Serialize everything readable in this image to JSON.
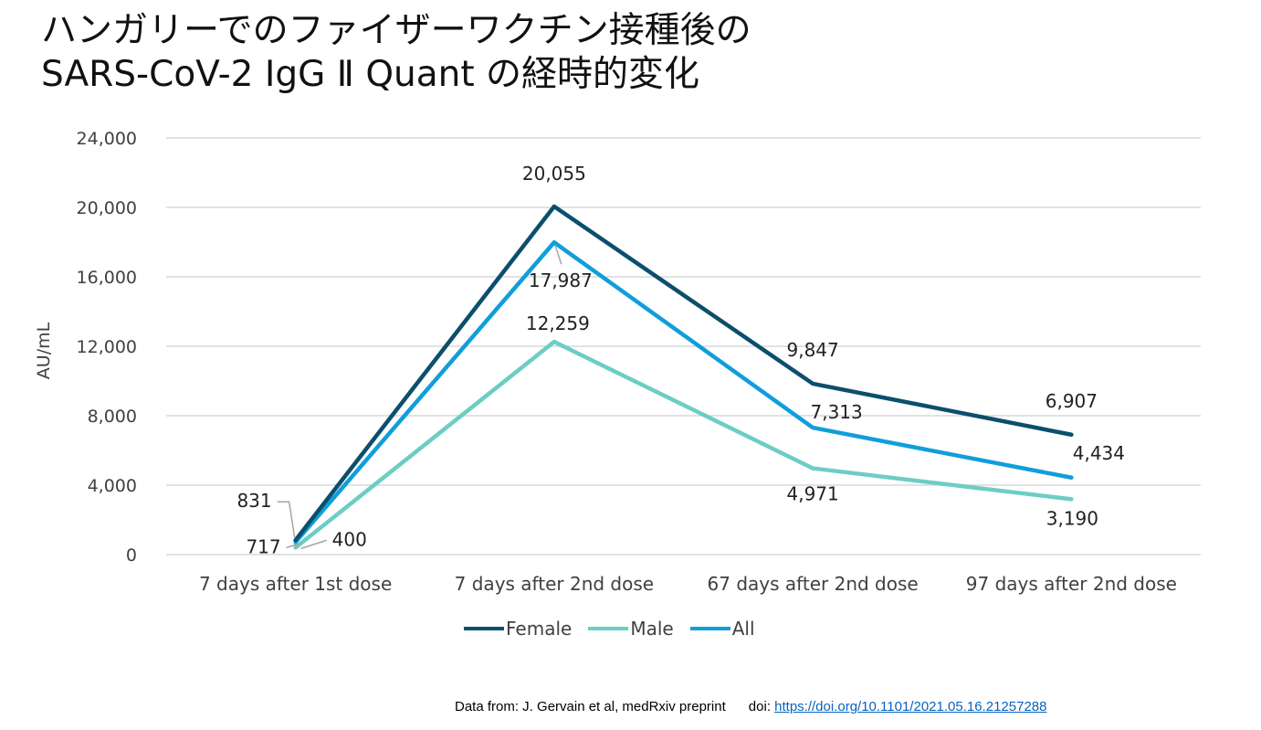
{
  "title": {
    "line1": "ハンガリーでのファイザーワクチン接種後の",
    "line2": "SARS-CoV-2 IgG Ⅱ Quant の経時的変化"
  },
  "chart_data": {
    "type": "line",
    "ylabel": "AU/mL",
    "ylim": [
      0,
      24000
    ],
    "yticks": [
      0,
      4000,
      8000,
      12000,
      16000,
      20000,
      24000
    ],
    "ytick_labels": [
      "0",
      "4,000",
      "8,000",
      "12,000",
      "16,000",
      "20,000",
      "24,000"
    ],
    "categories": [
      "7 days after 1st dose",
      "7 days after 2nd dose",
      "67 days after 2nd dose",
      "97 days after 2nd dose"
    ],
    "grid": true,
    "legend_position": "bottom",
    "series": [
      {
        "name": "Female",
        "color": "#0B4F6C",
        "values": [
          831,
          20055,
          9847,
          6907
        ],
        "labels": [
          "831",
          "20,055",
          "9,847",
          "6,907"
        ]
      },
      {
        "name": "Male",
        "color": "#6CCDC4",
        "values": [
          400,
          12259,
          4971,
          3190
        ],
        "labels": [
          "400",
          "12,259",
          "4,971",
          "3,190"
        ]
      },
      {
        "name": "All",
        "color": "#109EDB",
        "values": [
          717,
          17987,
          7313,
          4434
        ],
        "labels": [
          "717",
          "17,987",
          "7,313",
          "4,434"
        ]
      }
    ]
  },
  "source": {
    "prefix": "Data from: J. Gervain et al, medRxiv preprint",
    "doi_label": "doi:",
    "doi_url": "https://doi.org/10.1101/2021.05.16.21257288"
  }
}
